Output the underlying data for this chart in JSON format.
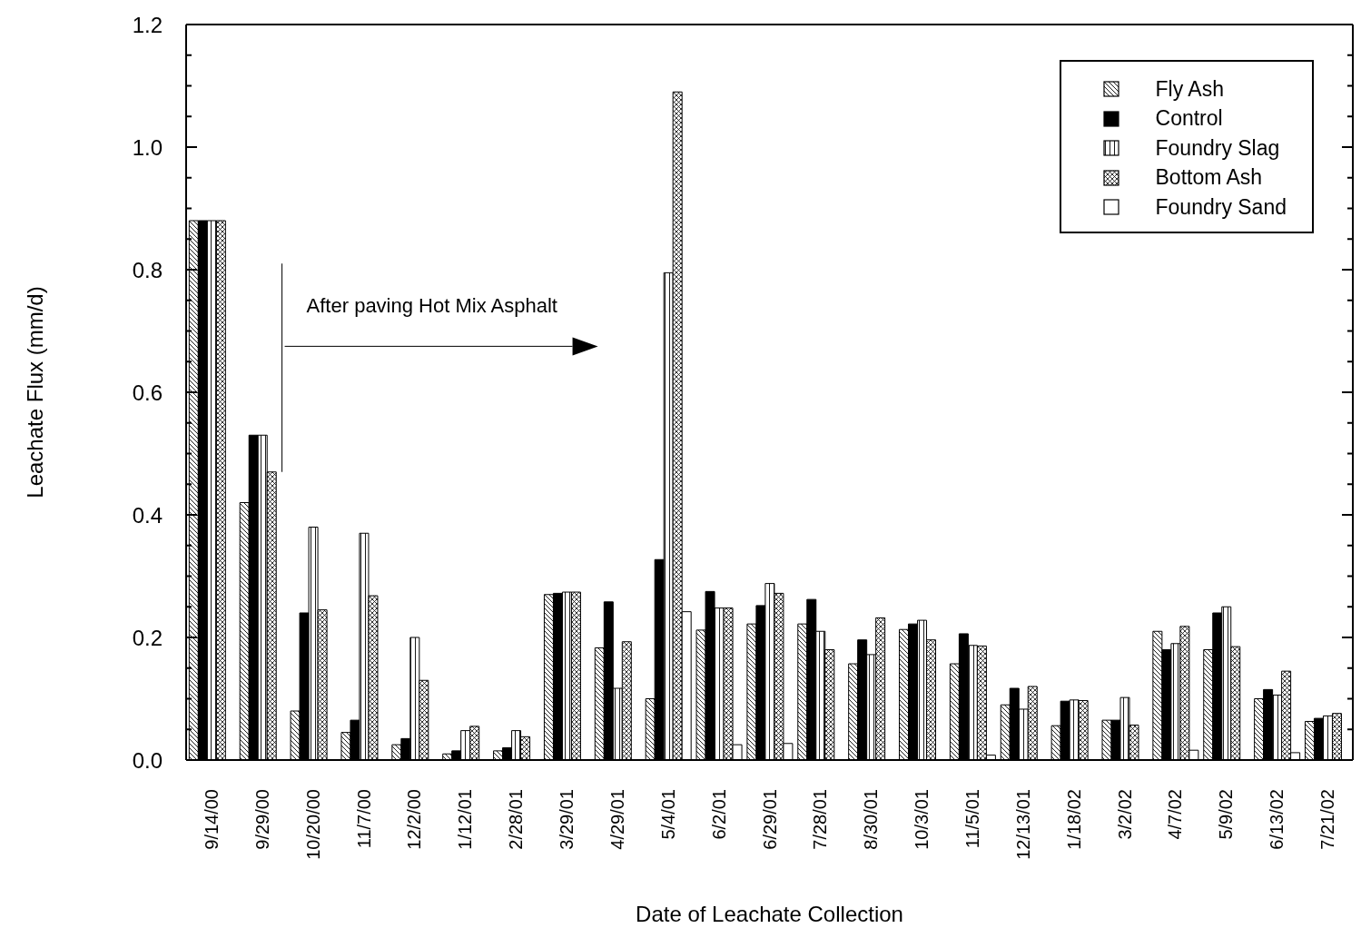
{
  "chart_data": {
    "type": "bar",
    "xlabel": "Date of Leachate Collection",
    "ylabel": "Leachate Flux (mm/d)",
    "categories": [
      "9/14/00",
      "9/29/00",
      "10/20/00",
      "11/7/00",
      "12/2/00",
      "1/12/01",
      "2/28/01",
      "3/29/01",
      "4/29/01",
      "5/4/01",
      "6/2/01",
      "6/29/01",
      "7/28/01",
      "8/30/01",
      "10/3/01",
      "11/5/01",
      "12/13/01",
      "1/18/02",
      "3/2/02",
      "4/7/02",
      "5/9/02",
      "6/13/02",
      "7/21/02"
    ],
    "series": [
      {
        "name": "Fly Ash",
        "color": "#000000",
        "values": [
          0.88,
          0.42,
          0.08,
          0.045,
          0.025,
          0.01,
          0.015,
          0.27,
          0.183,
          0.1,
          0.212,
          0.222,
          0.222,
          0.157,
          0.213,
          0.157,
          0.09,
          0.056,
          0.065,
          0.21,
          0.18,
          0.1,
          0.063
        ]
      },
      {
        "name": "Control",
        "color": "#000000",
        "values": [
          0.88,
          0.53,
          0.24,
          0.065,
          0.035,
          0.015,
          0.02,
          0.272,
          0.258,
          0.327,
          0.275,
          0.252,
          0.262,
          0.196,
          0.222,
          0.206,
          0.117,
          0.096,
          0.065,
          0.18,
          0.24,
          0.115,
          0.068
        ]
      },
      {
        "name": "Foundry Slag",
        "color": "#000000",
        "values": [
          0.88,
          0.53,
          0.38,
          0.37,
          0.2,
          0.048,
          0.048,
          0.274,
          0.117,
          0.795,
          0.248,
          0.288,
          0.21,
          0.172,
          0.228,
          0.187,
          0.083,
          0.098,
          0.102,
          0.19,
          0.25,
          0.106,
          0.072
        ]
      },
      {
        "name": "Bottom Ash",
        "color": "#000000",
        "values": [
          0.88,
          0.47,
          0.245,
          0.268,
          0.13,
          0.055,
          0.038,
          0.274,
          0.193,
          1.09,
          0.248,
          0.272,
          0.18,
          0.232,
          0.196,
          0.186,
          0.12,
          0.097,
          0.057,
          0.218,
          0.185,
          0.145,
          0.076
        ]
      },
      {
        "name": "Foundry Sand",
        "color": "#ffffff",
        "values": [
          0,
          0,
          0,
          0,
          0,
          0,
          0,
          0,
          0,
          0.242,
          0.025,
          0.027,
          0,
          0,
          0,
          0.008,
          0,
          0,
          0,
          0.016,
          0,
          0.012,
          0
        ]
      }
    ],
    "ylim": [
      0,
      1.2
    ],
    "yticks": [
      {
        "value": 0,
        "label": "0.0"
      },
      {
        "value": 0.05,
        "label": null
      },
      {
        "value": 0.1,
        "label": null
      },
      {
        "value": 0.15,
        "label": null
      },
      {
        "value": 0.2,
        "label": "0.2"
      },
      {
        "value": 0.25,
        "label": null
      },
      {
        "value": 0.3,
        "label": null
      },
      {
        "value": 0.35,
        "label": null
      },
      {
        "value": 0.4,
        "label": "0.4"
      },
      {
        "value": 0.45,
        "label": null
      },
      {
        "value": 0.5,
        "label": null
      },
      {
        "value": 0.55,
        "label": null
      },
      {
        "value": 0.6,
        "label": "0.6"
      },
      {
        "value": 0.65,
        "label": null
      },
      {
        "value": 0.7,
        "label": null
      },
      {
        "value": 0.75,
        "label": null
      },
      {
        "value": 0.8,
        "label": "0.8"
      },
      {
        "value": 0.85,
        "label": null
      },
      {
        "value": 0.9,
        "label": null
      },
      {
        "value": 0.95,
        "label": null
      },
      {
        "value": 1,
        "label": "1.0"
      },
      {
        "value": 1.05,
        "label": null
      },
      {
        "value": 1.1,
        "label": null
      },
      {
        "value": 1.15,
        "label": null
      },
      {
        "value": 1.2,
        "label": "1.2"
      }
    ],
    "annotations": [
      "After paving Hot Mix Asphalt"
    ],
    "legend": "top right"
  }
}
